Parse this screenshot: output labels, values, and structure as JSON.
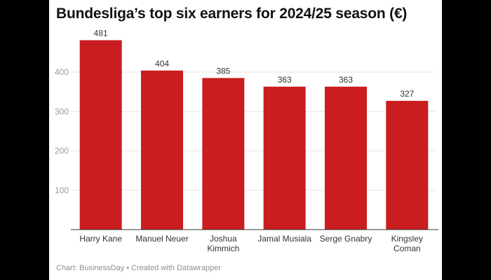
{
  "chart_data": {
    "type": "bar",
    "title": "Bundesliga’s top six earners for 2024/25 season (€)",
    "categories": [
      "Harry Kane",
      "Manuel Neuer",
      "Joshua Kimmich",
      "Jamal Musiala",
      "Serge Gnabry",
      "Kingsley Coman"
    ],
    "category_lines": [
      [
        "Harry Kane"
      ],
      [
        "Manuel Neuer"
      ],
      [
        "Joshua",
        "Kimmich"
      ],
      [
        "Jamal Musiala"
      ],
      [
        "Serge Gnabry"
      ],
      [
        "Kingsley",
        "Coman"
      ]
    ],
    "values": [
      481,
      404,
      385,
      363,
      363,
      327
    ],
    "yticks": [
      100,
      200,
      300,
      400
    ],
    "ylim": [
      0,
      500
    ],
    "grid": true,
    "xlabel": "",
    "ylabel": "",
    "bar_color": "#c91d20"
  },
  "footer": "Chart: BusinessDay • Created with Datawrapper"
}
